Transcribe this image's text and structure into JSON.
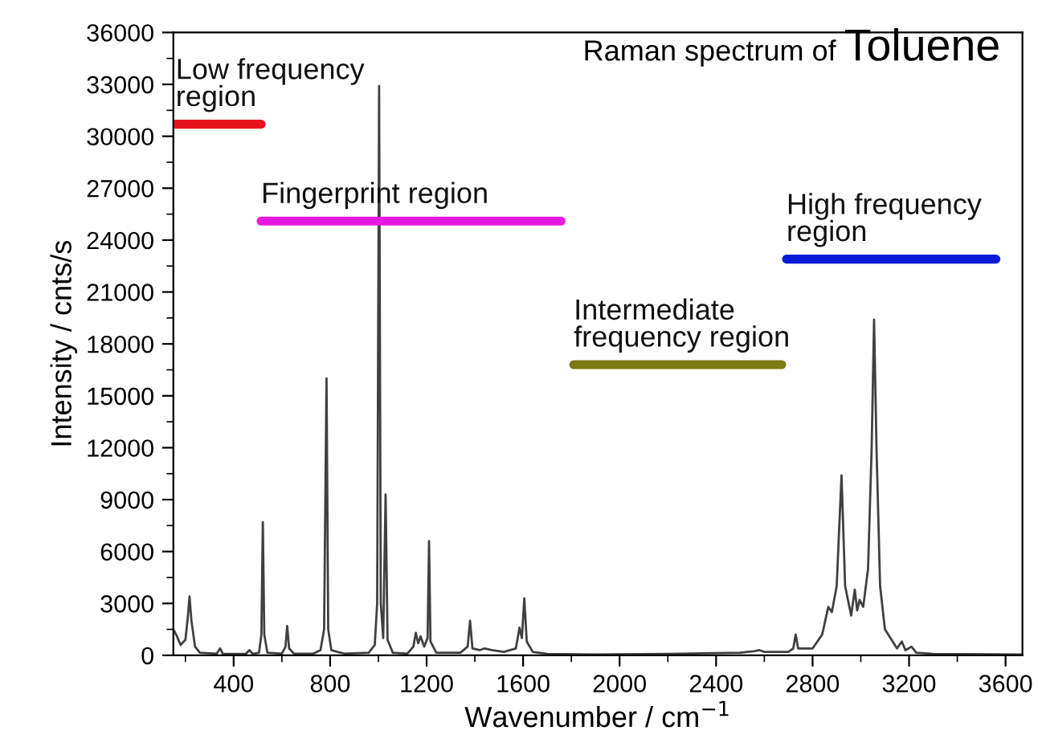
{
  "chart_data": {
    "type": "line",
    "title": "Raman spectrum of Toluene",
    "xlabel": "Wavenumber / cm$^{−1}$",
    "ylabel": "Intensity / cnts/s",
    "xlim": [
      150,
      3670
    ],
    "xticks": [
      400,
      800,
      1200,
      1600,
      2000,
      2400,
      2800,
      3200,
      3600
    ],
    "ylim": [
      0,
      36000
    ],
    "yticks": [
      0,
      3000,
      6000,
      9000,
      12000,
      15000,
      18000,
      21000,
      24000,
      27000,
      30000,
      33000,
      36000
    ],
    "grid": false,
    "legend": false,
    "marker": "none",
    "line_style": "solid",
    "series": [
      {
        "color": "#404040",
        "x": [
          150,
          165,
          180,
          200,
          210,
          217,
          225,
          240,
          260,
          330,
          344,
          355,
          450,
          465,
          480,
          505,
          515,
          521,
          527,
          540,
          600,
          615,
          622,
          630,
          650,
          730,
          760,
          775,
          785,
          792,
          805,
          830,
          860,
          960,
          985,
          995,
          1003,
          1010,
          1020,
          1030,
          1038,
          1060,
          1120,
          1145,
          1155,
          1165,
          1175,
          1190,
          1204,
          1210,
          1216,
          1240,
          1340,
          1370,
          1380,
          1390,
          1420,
          1440,
          1470,
          1520,
          1570,
          1585,
          1595,
          1605,
          1615,
          1640,
          1700,
          1900,
          2200,
          2500,
          2560,
          2580,
          2600,
          2700,
          2720,
          2730,
          2740,
          2800,
          2840,
          2865,
          2880,
          2900,
          2920,
          2935,
          2960,
          2975,
          2985,
          2995,
          3010,
          3030,
          3045,
          3055,
          3065,
          3080,
          3100,
          3150,
          3170,
          3185,
          3210,
          3230,
          3300,
          3670
        ],
        "values": [
          1500,
          1100,
          600,
          900,
          2200,
          3400,
          2000,
          500,
          150,
          100,
          400,
          100,
          80,
          300,
          80,
          150,
          1200,
          7700,
          1200,
          150,
          100,
          500,
          1700,
          400,
          100,
          100,
          300,
          1500,
          16000,
          1500,
          300,
          200,
          100,
          150,
          600,
          3000,
          32900,
          3000,
          1000,
          9300,
          900,
          150,
          100,
          500,
          1300,
          700,
          1100,
          500,
          1000,
          6600,
          800,
          150,
          150,
          500,
          2000,
          400,
          300,
          400,
          300,
          200,
          400,
          1600,
          1000,
          3300,
          800,
          200,
          80,
          50,
          80,
          150,
          250,
          300,
          200,
          200,
          400,
          1200,
          400,
          400,
          1200,
          2800,
          2500,
          4000,
          10400,
          4000,
          2300,
          3800,
          2600,
          3200,
          2800,
          5000,
          12000,
          19400,
          12000,
          4000,
          1500,
          400,
          800,
          300,
          500,
          150,
          80,
          50
        ]
      },
      {
        "name": "Low frequency region",
        "color": "#e8141c",
        "x": [
          160,
          514
        ],
        "values": [
          30700,
          30700
        ]
      },
      {
        "name": "Fingerprint region",
        "color": "#e619e0",
        "x": [
          514,
          1757
        ],
        "values": [
          25100,
          25100
        ]
      },
      {
        "name": "Intermediate frequency region",
        "color": "#7a7a10",
        "x": [
          1810,
          2672
        ],
        "values": [
          16800,
          16800
        ]
      },
      {
        "name": "High frequency region",
        "color": "#0a1ad8",
        "x": [
          2692,
          3560
        ],
        "values": [
          22900,
          22900
        ]
      }
    ]
  }
}
